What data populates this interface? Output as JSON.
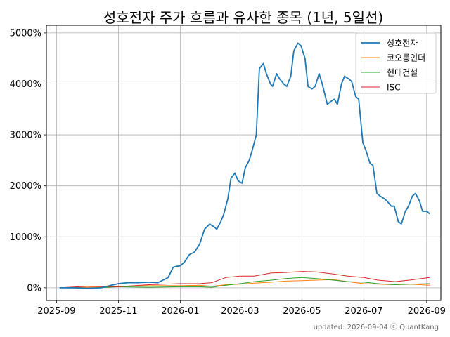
{
  "chart_data": {
    "type": "line",
    "title": "성호전자 주가 흐름과 유사한 종목 (1년, 5일선)",
    "xlabel": "",
    "ylabel": "",
    "x_tick_labels": [
      "2025-09",
      "2025-11",
      "2026-01",
      "2026-03",
      "2026-05",
      "2026-07",
      "2026-09"
    ],
    "x_ticks": [
      "2025-09-01",
      "2025-11-01",
      "2026-01-01",
      "2026-03-01",
      "2026-05-01",
      "2026-07-01",
      "2026-09-01"
    ],
    "xlim": [
      "2025-08-22",
      "2026-09-15"
    ],
    "y_tick_labels": [
      "0%",
      "1000%",
      "2000%",
      "3000%",
      "4000%",
      "5000%"
    ],
    "y_ticks": [
      0,
      1000,
      2000,
      3000,
      4000,
      5000
    ],
    "ylim": [
      -250,
      5150
    ],
    "grid": true,
    "legend_position": "top-right",
    "series": [
      {
        "name": "성호전자",
        "color": "#1f77b4",
        "x": [
          "2025-09-04",
          "2025-09-20",
          "2025-10-01",
          "2025-10-15",
          "2025-10-25",
          "2025-11-01",
          "2025-11-10",
          "2025-11-20",
          "2025-12-01",
          "2025-12-10",
          "2025-12-15",
          "2025-12-20",
          "2025-12-25",
          "2025-12-28",
          "2026-01-01",
          "2026-01-05",
          "2026-01-10",
          "2026-01-15",
          "2026-01-20",
          "2026-01-25",
          "2026-01-30",
          "2026-02-03",
          "2026-02-06",
          "2026-02-10",
          "2026-02-13",
          "2026-02-17",
          "2026-02-20",
          "2026-02-24",
          "2026-02-27",
          "2026-03-03",
          "2026-03-06",
          "2026-03-10",
          "2026-03-13",
          "2026-03-17",
          "2026-03-20",
          "2026-03-24",
          "2026-03-27",
          "2026-03-31",
          "2026-04-02",
          "2026-04-06",
          "2026-04-09",
          "2026-04-13",
          "2026-04-16",
          "2026-04-20",
          "2026-04-23",
          "2026-04-27",
          "2026-04-30",
          "2026-05-04",
          "2026-05-07",
          "2026-05-11",
          "2026-05-14",
          "2026-05-18",
          "2026-05-21",
          "2026-05-26",
          "2026-05-29",
          "2026-06-02",
          "2026-06-05",
          "2026-06-09",
          "2026-06-12",
          "2026-06-16",
          "2026-06-19",
          "2026-06-23",
          "2026-06-26",
          "2026-06-30",
          "2026-07-03",
          "2026-07-07",
          "2026-07-10",
          "2026-07-14",
          "2026-07-17",
          "2026-07-21",
          "2026-07-24",
          "2026-07-28",
          "2026-07-31",
          "2026-08-04",
          "2026-08-07",
          "2026-08-11",
          "2026-08-14",
          "2026-08-18",
          "2026-08-21",
          "2026-08-25",
          "2026-08-28",
          "2026-09-01",
          "2026-09-04"
        ],
        "values": [
          0,
          0,
          -10,
          0,
          50,
          80,
          100,
          100,
          110,
          100,
          150,
          200,
          400,
          420,
          430,
          500,
          650,
          700,
          850,
          1150,
          1250,
          1200,
          1150,
          1300,
          1450,
          1750,
          2150,
          2250,
          2100,
          2050,
          2350,
          2500,
          2700,
          3000,
          4300,
          4400,
          4200,
          4000,
          3950,
          4200,
          4100,
          4000,
          3950,
          4150,
          4650,
          4800,
          4750,
          4500,
          3950,
          3900,
          3950,
          4200,
          4000,
          3600,
          3650,
          3700,
          3600,
          4000,
          4150,
          4100,
          4050,
          3750,
          3700,
          2850,
          2700,
          2450,
          2400,
          1850,
          1800,
          1750,
          1700,
          1600,
          1600,
          1300,
          1250,
          1500,
          1600,
          1800,
          1850,
          1700,
          1500,
          1500,
          1450
        ]
      },
      {
        "name": "코오롱인더",
        "color": "#ff7f0e",
        "x": [
          "2025-09-04",
          "2025-10-01",
          "2025-11-01",
          "2025-12-01",
          "2026-01-01",
          "2026-01-20",
          "2026-02-01",
          "2026-02-15",
          "2026-03-01",
          "2026-03-15",
          "2026-04-01",
          "2026-04-15",
          "2026-05-01",
          "2026-05-15",
          "2026-06-01",
          "2026-06-15",
          "2026-07-01",
          "2026-07-15",
          "2026-08-01",
          "2026-08-15",
          "2026-09-04"
        ],
        "values": [
          0,
          10,
          20,
          40,
          40,
          50,
          30,
          60,
          70,
          90,
          110,
          130,
          140,
          150,
          160,
          120,
          80,
          70,
          60,
          70,
          50
        ]
      },
      {
        "name": "현대건설",
        "color": "#2ca02c",
        "x": [
          "2025-09-04",
          "2025-10-01",
          "2025-11-01",
          "2025-12-01",
          "2026-01-01",
          "2026-01-20",
          "2026-02-01",
          "2026-02-15",
          "2026-03-01",
          "2026-03-15",
          "2026-04-01",
          "2026-04-15",
          "2026-05-01",
          "2026-05-15",
          "2026-06-01",
          "2026-06-15",
          "2026-07-01",
          "2026-07-15",
          "2026-08-01",
          "2026-08-15",
          "2026-09-04"
        ],
        "values": [
          0,
          -10,
          20,
          10,
          20,
          20,
          10,
          50,
          80,
          120,
          150,
          180,
          200,
          180,
          150,
          120,
          110,
          80,
          60,
          70,
          80
        ]
      },
      {
        "name": "ISC",
        "color": "#d62728",
        "x": [
          "2025-09-04",
          "2025-10-01",
          "2025-11-01",
          "2025-12-01",
          "2026-01-01",
          "2026-01-20",
          "2026-02-01",
          "2026-02-15",
          "2026-03-01",
          "2026-03-15",
          "2026-04-01",
          "2026-04-15",
          "2026-05-01",
          "2026-05-15",
          "2026-06-01",
          "2026-06-15",
          "2026-07-01",
          "2026-07-15",
          "2026-08-01",
          "2026-08-15",
          "2026-09-04"
        ],
        "values": [
          0,
          30,
          20,
          60,
          80,
          80,
          100,
          200,
          230,
          230,
          290,
          300,
          320,
          310,
          270,
          230,
          200,
          150,
          120,
          150,
          200
        ]
      }
    ]
  },
  "footer_text": "updated: 2026-09-04 ⓒ QuantKang"
}
